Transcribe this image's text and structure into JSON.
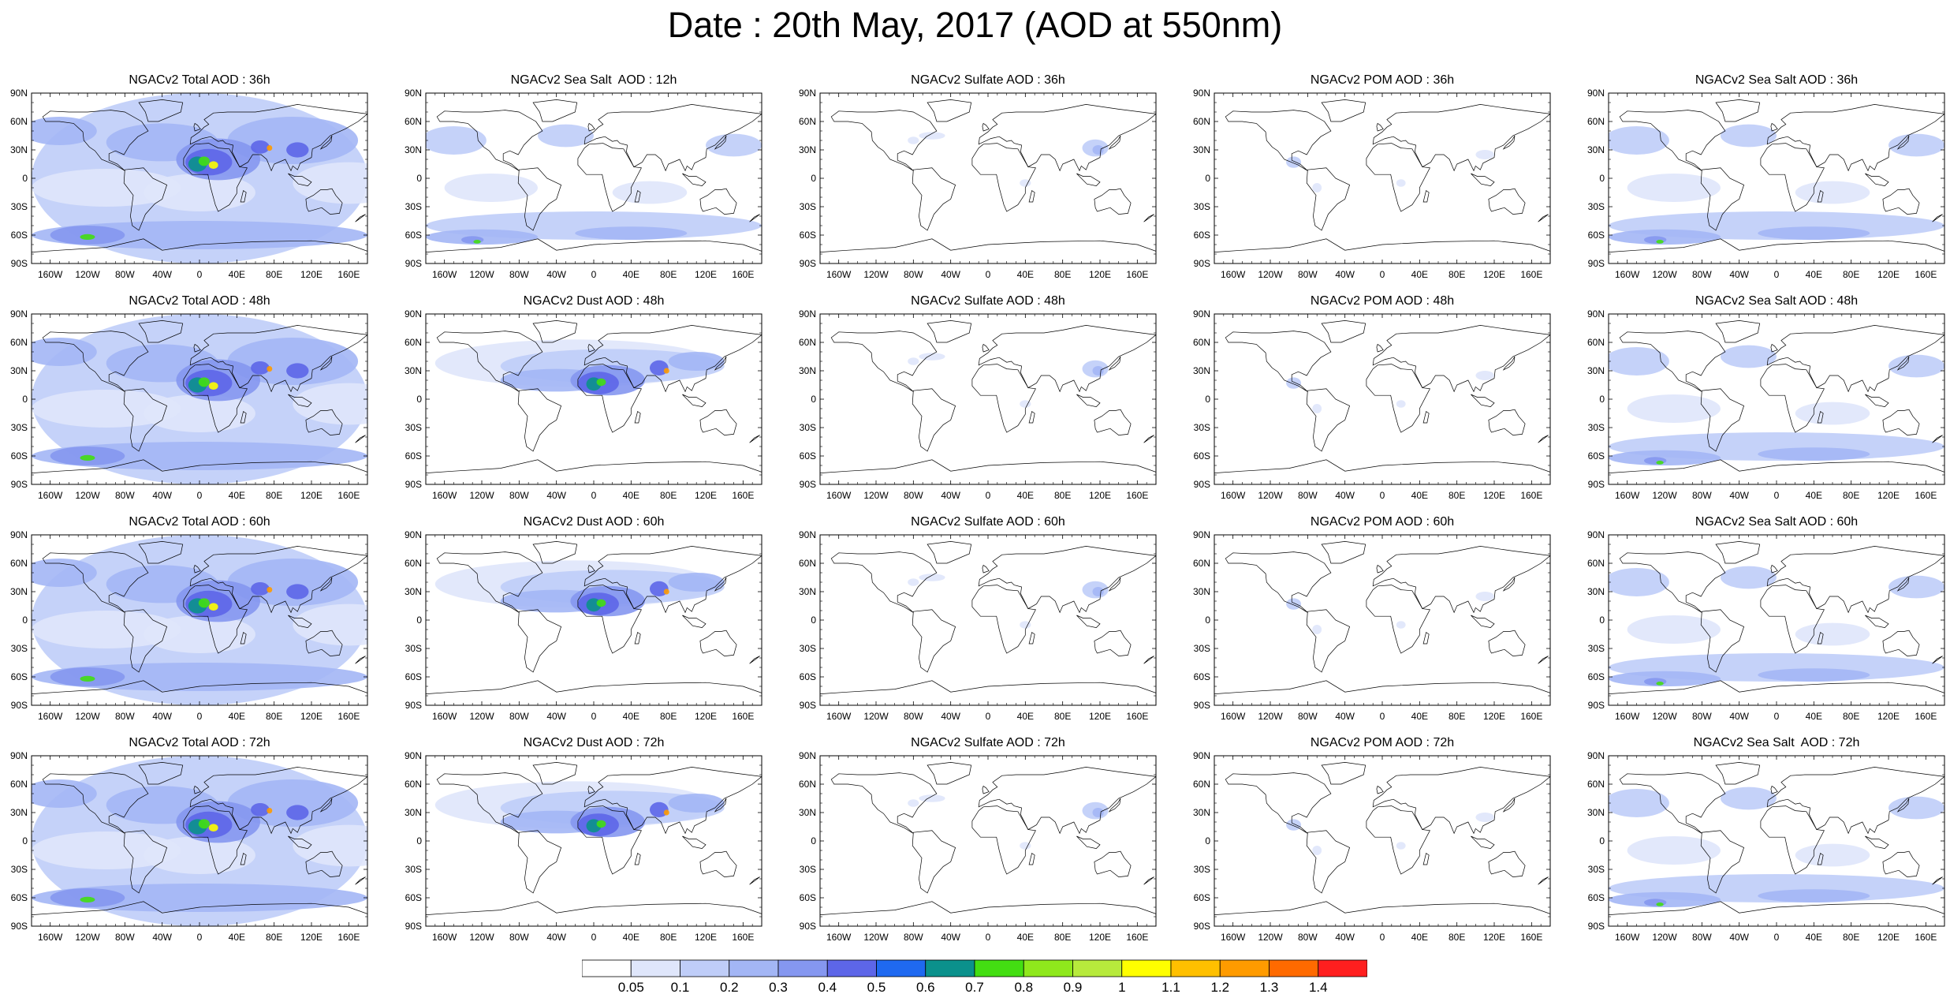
{
  "title": "Date : 20th May, 2017 (AOD at 550nm)",
  "lat_labels": [
    "90N",
    "60N",
    "30N",
    "0",
    "30S",
    "60S",
    "90S"
  ],
  "lon_labels": [
    "160W",
    "120W",
    "80W",
    "40W",
    "0",
    "40E",
    "80E",
    "120E",
    "160E"
  ],
  "rows": [
    [
      "NGACv2 Total AOD : 36h",
      "NGACv2 Sea Salt  AOD : 12h",
      "NGACv2 Sulfate AOD : 36h",
      "NGACv2 POM AOD : 36h",
      "NGACv2 Sea Salt AOD : 36h"
    ],
    [
      "NGACv2 Total AOD : 48h",
      "NGACv2 Dust AOD : 48h",
      "NGACv2 Sulfate AOD : 48h",
      "NGACv2 POM AOD : 48h",
      "NGACv2 Sea Salt AOD : 48h"
    ],
    [
      "NGACv2 Total AOD : 60h",
      "NGACv2 Dust AOD : 60h",
      "NGACv2 Sulfate AOD : 60h",
      "NGACv2 POM AOD : 60h",
      "NGACv2 Sea Salt AOD : 60h"
    ],
    [
      "NGACv2 Total AOD : 72h",
      "NGACv2 Dust AOD : 72h",
      "NGACv2 Sulfate AOD : 72h",
      "NGACv2 POM AOD : 72h",
      "NGACv2 Sea Salt  AOD : 72h"
    ]
  ],
  "colorbar": {
    "labels": [
      "0.05",
      "0.1",
      "0.2",
      "0.3",
      "0.4",
      "0.5",
      "0.6",
      "0.7",
      "0.8",
      "0.9",
      "1",
      "1.1",
      "1.2",
      "1.3",
      "1.4"
    ],
    "colors": [
      "#ffffff",
      "#dfe6fb",
      "#bfcdf8",
      "#a3b6f5",
      "#8597f0",
      "#5d66e8",
      "#1f69f0",
      "#0b918c",
      "#43de12",
      "#8fe81c",
      "#b7ea3c",
      "#ffff00",
      "#ffc000",
      "#ff9b00",
      "#ff6a00",
      "#ff1f1f"
    ]
  },
  "map_colors": {
    "faint": "#dfe6fb",
    "light": "#bfcdf8",
    "medium": "#a3b6f5",
    "strong": "#8597f0",
    "deep": "#5d66e8",
    "teal": "#0b918c",
    "green": "#43de12",
    "yellow": "#ffff00",
    "orange": "#ff9b00",
    "coast": "#000000"
  }
}
